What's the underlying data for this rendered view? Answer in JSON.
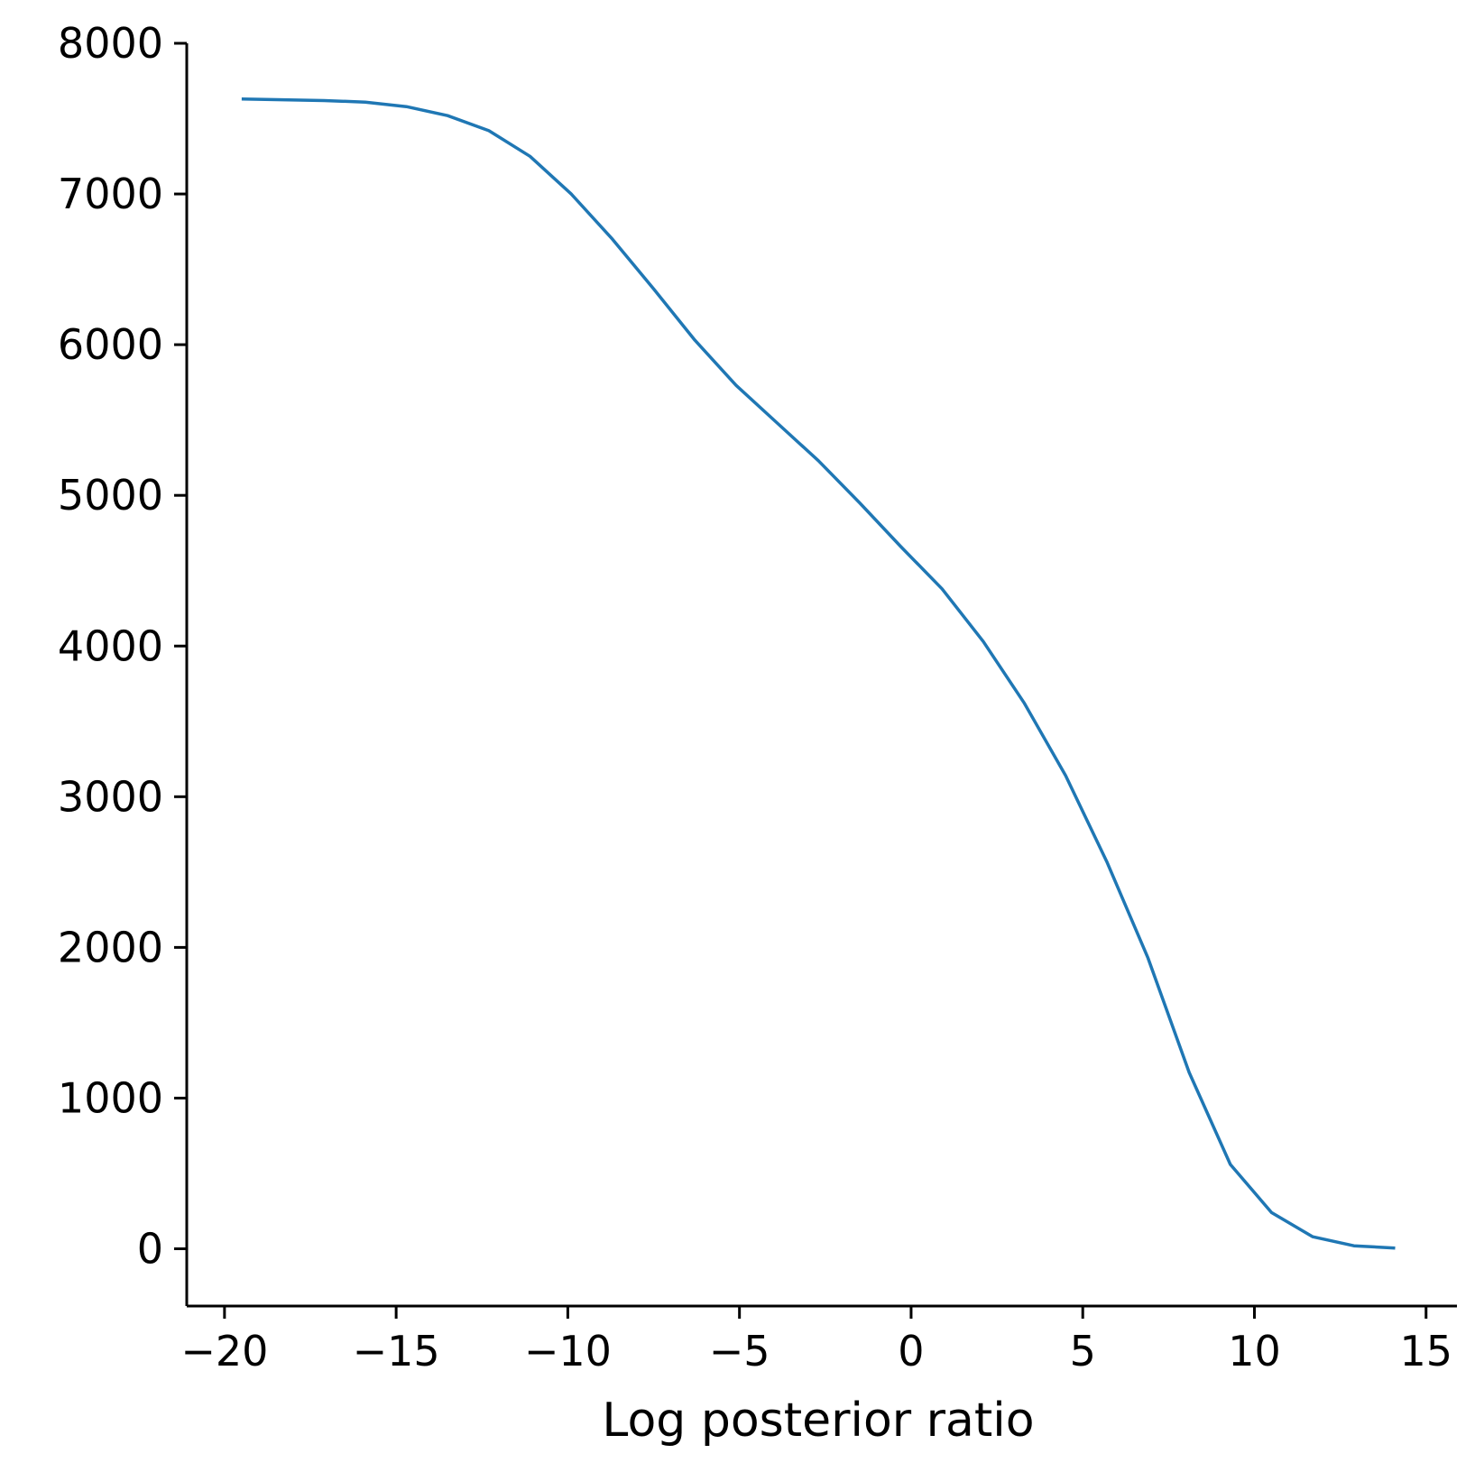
{
  "chart_data": {
    "type": "line",
    "title": "",
    "xlabel": "Log posterior ratio",
    "ylabel": "",
    "xlim": [
      -21.1,
      15.9
    ],
    "ylim": [
      -380,
      8000
    ],
    "xticks": [
      -20,
      -15,
      -10,
      -5,
      0,
      5,
      10,
      15
    ],
    "xtick_labels": [
      "−20",
      "−15",
      "−10",
      "−5",
      "0",
      "5",
      "10",
      "15"
    ],
    "yticks": [
      0,
      1000,
      2000,
      3000,
      4000,
      5000,
      6000,
      7000,
      8000
    ],
    "ytick_labels": [
      "0",
      "1000",
      "2000",
      "3000",
      "4000",
      "5000",
      "6000",
      "7000",
      "8000"
    ],
    "grid": false,
    "legend": "none",
    "line_color": "#1f77b4",
    "series": [
      {
        "x": [
          -19.5,
          -17.1,
          -15.9,
          -14.7,
          -13.5,
          -12.3,
          -11.1,
          -9.9,
          -8.7,
          -7.5,
          -6.3,
          -5.1,
          -3.9,
          -2.7,
          -1.5,
          -0.3,
          0.9,
          2.1,
          3.3,
          4.5,
          5.7,
          6.9,
          8.1,
          9.3,
          10.5,
          11.7,
          12.9,
          14.1
        ],
        "y": [
          7630,
          7620,
          7610,
          7580,
          7520,
          7420,
          7250,
          7000,
          6700,
          6370,
          6030,
          5730,
          5480,
          5230,
          4950,
          4660,
          4380,
          4030,
          3620,
          3140,
          2570,
          1930,
          1170,
          560,
          240,
          80,
          20,
          5
        ]
      }
    ]
  }
}
